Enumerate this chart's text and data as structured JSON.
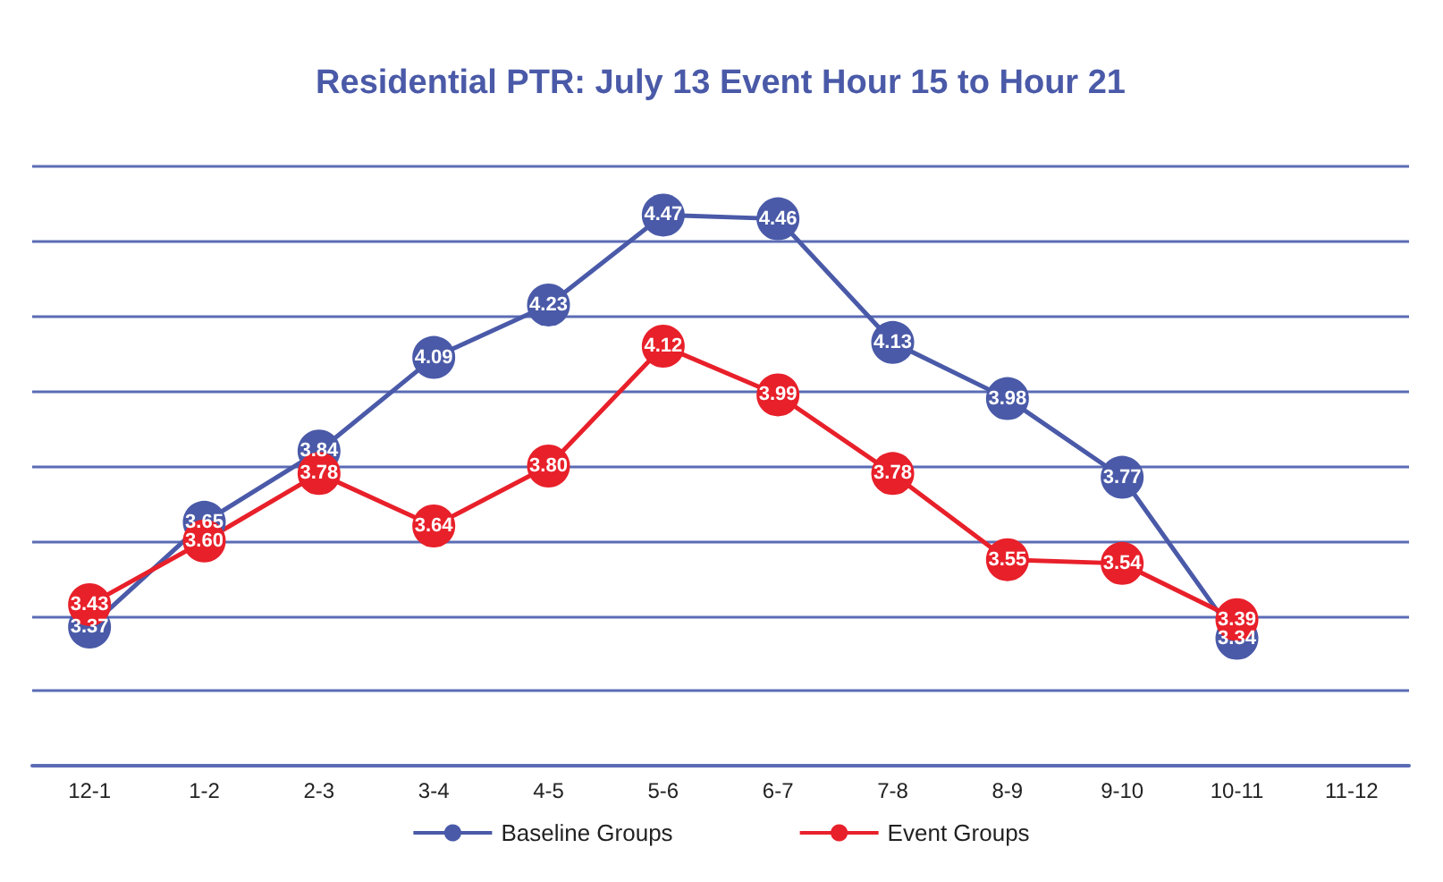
{
  "chart_data": {
    "type": "line",
    "title": "Residential PTR: July 13 Event Hour 15 to Hour 21",
    "categories": [
      "12-1",
      "1-2",
      "2-3",
      "3-4",
      "4-5",
      "5-6",
      "6-7",
      "7-8",
      "8-9",
      "9-10",
      "10-11",
      "11-12"
    ],
    "series": [
      {
        "name": "Baseline Groups",
        "color": "#4a5aa8",
        "values": [
          3.37,
          3.65,
          3.84,
          4.09,
          4.23,
          4.47,
          4.46,
          4.13,
          3.98,
          3.77,
          3.34,
          null
        ],
        "value_labels": [
          "3.37",
          "3.65",
          "3.84",
          "4.09",
          "4.23",
          "4.47",
          "4.46",
          "4.13",
          "3.98",
          "3.77",
          "3.34",
          null
        ]
      },
      {
        "name": "Event Groups",
        "color": "#e8202a",
        "values": [
          3.43,
          3.6,
          3.78,
          3.64,
          3.8,
          4.12,
          3.99,
          3.78,
          3.55,
          3.54,
          3.39,
          null
        ],
        "value_labels": [
          "3.43",
          "3.60",
          "3.78",
          "3.64",
          "3.80",
          "4.12",
          "3.99",
          "3.78",
          "3.55",
          "3.54",
          "3.39",
          null
        ]
      }
    ],
    "ylim": [
      3.0,
      4.6
    ],
    "yticks": [
      3.0,
      3.2,
      3.4,
      3.6,
      3.8,
      4.0,
      4.2,
      4.4,
      4.6
    ],
    "tick_labels": "x",
    "grid": "y",
    "legend": "bottom",
    "marker": "circle",
    "line_style": "solid"
  }
}
